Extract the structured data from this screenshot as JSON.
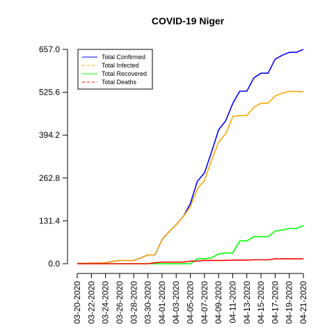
{
  "chart_data": {
    "type": "line",
    "title": "COVID-19 Niger",
    "xlabel": "",
    "ylabel": "",
    "ylim": [
      0,
      657
    ],
    "yticks": [
      "0.0",
      "131.4",
      "262.8",
      "394.2",
      "525.6",
      "657.0"
    ],
    "ytick_values": [
      0,
      131.4,
      262.8,
      394.2,
      525.6,
      657.0
    ],
    "x": [
      "03-20-2020",
      "03-21-2020",
      "03-22-2020",
      "03-23-2020",
      "03-24-2020",
      "03-25-2020",
      "03-26-2020",
      "03-27-2020",
      "03-28-2020",
      "03-29-2020",
      "03-30-2020",
      "03-31-2020",
      "04-01-2020",
      "04-02-2020",
      "04-03-2020",
      "04-04-2020",
      "04-05-2020",
      "04-06-2020",
      "04-07-2020",
      "04-08-2020",
      "04-09-2020",
      "04-10-2020",
      "04-11-2020",
      "04-12-2020",
      "04-13-2020",
      "04-14-2020",
      "04-15-2020",
      "04-16-2020",
      "04-17-2020",
      "04-18-2020",
      "04-19-2020",
      "04-20-2020",
      "04-21-2020"
    ],
    "xticks": [
      "03-20-2020",
      "03-22-2020",
      "03-24-2020",
      "03-26-2020",
      "03-28-2020",
      "03-30-2020",
      "04-01-2020",
      "04-03-2020",
      "04-05-2020",
      "04-07-2020",
      "04-09-2020",
      "04-11-2020",
      "04-13-2020",
      "04-15-2020",
      "04-17-2020",
      "04-19-2020",
      "04-21-2020"
    ],
    "legend_position": "top-left",
    "grid": false,
    "series": [
      {
        "name": "Total Confirmed",
        "color": "#0000ff",
        "dash": "solid",
        "values": [
          1,
          1,
          2,
          2,
          3,
          7,
          10,
          10,
          10,
          18,
          27,
          27,
          74,
          98,
          120,
          144,
          184,
          253,
          278,
          342,
          410,
          438,
          491,
          529,
          529,
          570,
          584,
          584,
          627,
          639,
          648,
          648,
          657
        ]
      },
      {
        "name": "Total Infected",
        "color": "#ffa500",
        "dash": "dashed",
        "values": [
          1,
          1,
          2,
          2,
          3,
          7,
          10,
          10,
          10,
          18,
          27,
          27,
          74,
          98,
          120,
          144,
          175,
          230,
          255,
          317,
          373,
          398,
          451,
          454,
          454,
          480,
          492,
          492,
          514,
          523,
          528,
          528,
          527
        ]
      },
      {
        "name": "Total Recovered",
        "color": "#00ff00",
        "dash": "solid",
        "values": [
          0,
          0,
          0,
          0,
          0,
          0,
          0,
          0,
          0,
          0,
          0,
          0,
          0,
          0,
          0,
          0,
          0,
          15,
          15,
          18,
          30,
          33,
          33,
          70,
          70,
          83,
          83,
          83,
          100,
          103,
          108,
          108,
          117
        ]
      },
      {
        "name": "Total Deaths",
        "color": "#ff0000",
        "dash": "dashed",
        "values": [
          0,
          0,
          0,
          0,
          0,
          0,
          0,
          0,
          0,
          0,
          0,
          3,
          5,
          5,
          5,
          5,
          8,
          8,
          10,
          10,
          10,
          10,
          11,
          11,
          11,
          12,
          12,
          12,
          15,
          15,
          15,
          15,
          15
        ]
      }
    ]
  }
}
